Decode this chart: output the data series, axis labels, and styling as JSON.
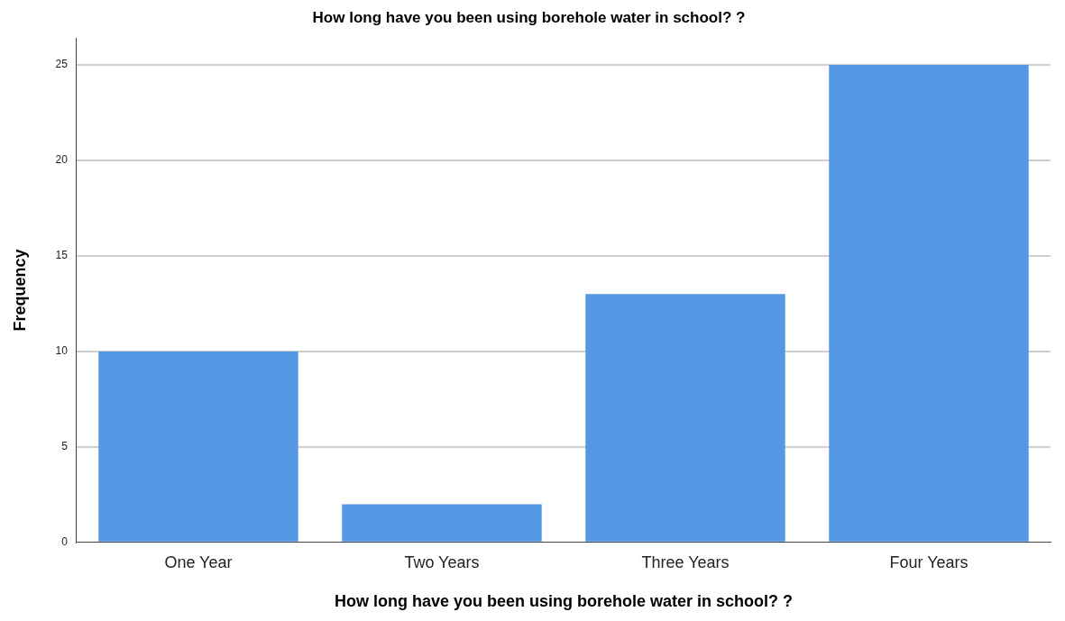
{
  "chart_data": {
    "type": "bar",
    "title": "How long have you been using borehole water in school? ?",
    "xlabel": "How long have you been using borehole water in school? ?",
    "ylabel": "Frequency",
    "categories": [
      "One Year",
      "Two Years",
      "Three Years",
      "Four Years"
    ],
    "values": [
      10,
      2,
      13,
      25
    ],
    "color": "#5596e5",
    "ylim": [
      0,
      26.4
    ],
    "yticks": [
      0,
      5,
      10,
      15,
      20,
      25
    ],
    "grid": "y"
  }
}
